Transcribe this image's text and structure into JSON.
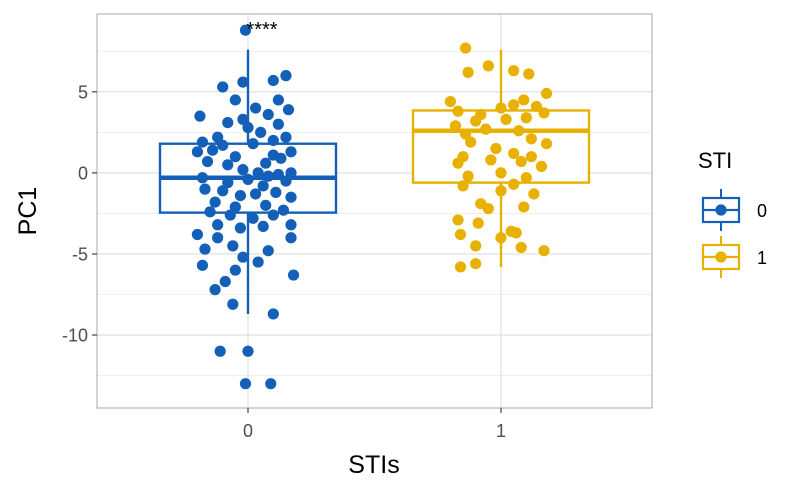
{
  "chart_data": {
    "type": "boxplot+jitter",
    "xlabel": "STIs",
    "ylabel": "PC1",
    "categories": [
      "0",
      "1"
    ],
    "ylim": [
      -14.5,
      9.8
    ],
    "yticks": [
      -10,
      -5,
      0,
      5
    ],
    "yticklabels": [
      "-10",
      "-5",
      "0",
      "5"
    ],
    "grid": true,
    "significance_label": "****",
    "legend": {
      "title": "STI",
      "position": "right",
      "entries": [
        {
          "label": "0",
          "color": "#1460B8"
        },
        {
          "label": "1",
          "color": "#E8B100"
        }
      ]
    },
    "boxes": [
      {
        "category": "0",
        "color": "#1460B8",
        "whisker_low": -8.7,
        "q1": -2.45,
        "median": -0.3,
        "q3": 1.8,
        "whisker_high": 7.6
      },
      {
        "category": "1",
        "color": "#E8B100",
        "whisker_low": -5.8,
        "q1": -0.6,
        "median": 2.6,
        "q3": 3.85,
        "whisker_high": 7.6
      }
    ],
    "series": [
      {
        "name": "0",
        "color": "#1460B8",
        "points": [
          [
            -0.01,
            8.8
          ],
          [
            0.15,
            6.0
          ],
          [
            -0.02,
            5.6
          ],
          [
            0.1,
            5.7
          ],
          [
            -0.1,
            5.3
          ],
          [
            -0.05,
            4.5
          ],
          [
            0.12,
            4.5
          ],
          [
            0.03,
            4.0
          ],
          [
            0.08,
            3.6
          ],
          [
            0.16,
            3.9
          ],
          [
            -0.19,
            3.5
          ],
          [
            0.12,
            3.0
          ],
          [
            -0.08,
            3.1
          ],
          [
            -0.02,
            3.3
          ],
          [
            0.0,
            2.8
          ],
          [
            0.05,
            2.5
          ],
          [
            -0.12,
            2.2
          ],
          [
            0.15,
            2.2
          ],
          [
            0.1,
            2.0
          ],
          [
            -0.18,
            1.9
          ],
          [
            -0.1,
            1.7
          ],
          [
            0.02,
            1.8
          ],
          [
            0.17,
            1.3
          ],
          [
            -0.2,
            1.3
          ],
          [
            -0.14,
            1.4
          ],
          [
            -0.05,
            1.0
          ],
          [
            0.1,
            1.1
          ],
          [
            0.07,
            0.6
          ],
          [
            0.13,
            0.9
          ],
          [
            -0.16,
            0.7
          ],
          [
            -0.08,
            0.5
          ],
          [
            -0.02,
            0.2
          ],
          [
            0.04,
            0.0
          ],
          [
            0.08,
            -0.2
          ],
          [
            0.12,
            -0.1
          ],
          [
            0.17,
            0.0
          ],
          [
            -0.18,
            -0.3
          ],
          [
            -0.08,
            -0.6
          ],
          [
            0.0,
            -0.4
          ],
          [
            0.06,
            -0.8
          ],
          [
            0.15,
            -0.5
          ],
          [
            -0.17,
            -1.0
          ],
          [
            -0.1,
            -1.1
          ],
          [
            -0.03,
            -1.4
          ],
          [
            0.03,
            -1.3
          ],
          [
            0.11,
            -1.2
          ],
          [
            0.17,
            -1.5
          ],
          [
            -0.13,
            -1.8
          ],
          [
            -0.05,
            -2.1
          ],
          [
            0.07,
            -2.0
          ],
          [
            0.14,
            -2.3
          ],
          [
            -0.15,
            -2.4
          ],
          [
            -0.07,
            -2.6
          ],
          [
            0.02,
            -2.8
          ],
          [
            0.1,
            -2.6
          ],
          [
            -0.12,
            -3.2
          ],
          [
            -0.03,
            -3.4
          ],
          [
            0.06,
            -3.3
          ],
          [
            0.17,
            -3.2
          ],
          [
            -0.2,
            -3.8
          ],
          [
            -0.12,
            -4.0
          ],
          [
            0.17,
            -4.0
          ],
          [
            -0.06,
            -4.5
          ],
          [
            0.08,
            -4.8
          ],
          [
            -0.17,
            -4.7
          ],
          [
            -0.02,
            -5.2
          ],
          [
            -0.18,
            -5.7
          ],
          [
            0.04,
            -5.5
          ],
          [
            0.18,
            -6.3
          ],
          [
            -0.05,
            -6.0
          ],
          [
            -0.09,
            -6.7
          ],
          [
            -0.13,
            -7.2
          ],
          [
            -0.06,
            -8.1
          ],
          [
            0.1,
            -8.7
          ],
          [
            -0.11,
            -11.0
          ],
          [
            0.0,
            -11.0
          ],
          [
            0.09,
            -13.0
          ],
          [
            -0.01,
            -13.0
          ]
        ]
      },
      {
        "name": "1",
        "color": "#E8B100",
        "points": [
          [
            -0.14,
            7.7
          ],
          [
            -0.05,
            6.6
          ],
          [
            -0.13,
            6.2
          ],
          [
            0.05,
            6.3
          ],
          [
            0.11,
            6.1
          ],
          [
            0.18,
            4.9
          ],
          [
            0.09,
            4.5
          ],
          [
            -0.2,
            4.4
          ],
          [
            0.0,
            4.0
          ],
          [
            0.05,
            4.2
          ],
          [
            0.14,
            4.1
          ],
          [
            -0.17,
            3.8
          ],
          [
            -0.08,
            3.6
          ],
          [
            -0.1,
            3.2
          ],
          [
            0.02,
            3.3
          ],
          [
            0.1,
            3.4
          ],
          [
            0.17,
            3.7
          ],
          [
            -0.18,
            2.9
          ],
          [
            -0.06,
            2.7
          ],
          [
            0.07,
            2.6
          ],
          [
            -0.14,
            2.4
          ],
          [
            0.12,
            2.1
          ],
          [
            0.18,
            1.8
          ],
          [
            -0.12,
            1.9
          ],
          [
            -0.02,
            1.5
          ],
          [
            0.05,
            1.2
          ],
          [
            -0.15,
            1.0
          ],
          [
            0.12,
            1.0
          ],
          [
            -0.04,
            0.8
          ],
          [
            -0.17,
            0.6
          ],
          [
            0.08,
            0.7
          ],
          [
            0.16,
            0.4
          ],
          [
            -0.13,
            -0.2
          ],
          [
            0.0,
            0.0
          ],
          [
            0.1,
            -0.3
          ],
          [
            0.05,
            -0.7
          ],
          [
            -0.15,
            -0.8
          ],
          [
            0.0,
            -1.1
          ],
          [
            0.13,
            -1.3
          ],
          [
            -0.08,
            -1.9
          ],
          [
            -0.05,
            -2.2
          ],
          [
            0.09,
            -2.1
          ],
          [
            -0.17,
            -2.9
          ],
          [
            -0.09,
            -3.1
          ],
          [
            0.04,
            -3.6
          ],
          [
            0.06,
            -3.7
          ],
          [
            -0.16,
            -3.8
          ],
          [
            0.0,
            -4.0
          ],
          [
            -0.1,
            -4.5
          ],
          [
            0.08,
            -4.6
          ],
          [
            0.17,
            -4.8
          ],
          [
            -0.1,
            -5.6
          ],
          [
            -0.16,
            -5.8
          ]
        ]
      }
    ]
  }
}
